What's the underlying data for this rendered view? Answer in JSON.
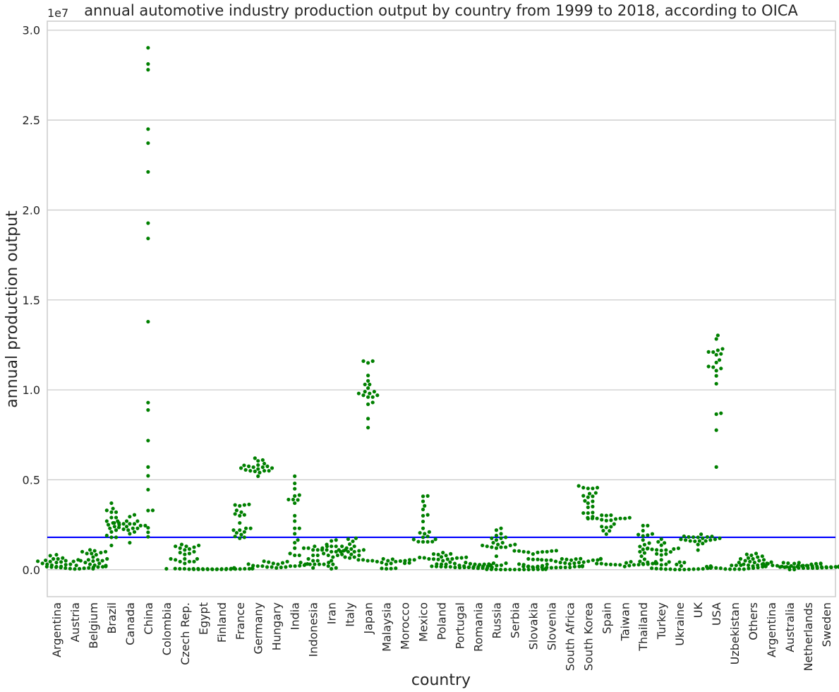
{
  "chart_data": {
    "type": "scatter",
    "style": "swarm",
    "title": "annual automotive industry production output by country from 1999 to 2018, according to OICA",
    "xlabel": "country",
    "ylabel": "annual production output",
    "y_multiplier_label": "1e7",
    "y_unit": 10000000,
    "ylim": [
      -1500000,
      30500000
    ],
    "yticks": [
      0,
      5000000,
      10000000,
      15000000,
      20000000,
      25000000,
      30000000
    ],
    "ytick_labels": [
      "0.0",
      "0.5",
      "1.0",
      "1.5",
      "2.0",
      "2.5",
      "3.0"
    ],
    "grid": true,
    "marker_color": "#008000",
    "reference_line": {
      "y": 1800000,
      "color": "#0000ff"
    },
    "categories": [
      "Argentina",
      "Austria",
      "Belgium",
      "Brazil",
      "Canada",
      "China",
      "Colombia",
      "Czech Rep.",
      "Egypt",
      "Finland",
      "France",
      "Germany",
      "Hungary",
      "India",
      "Indonesia",
      "Iran",
      "Italy",
      "Japan",
      "Malaysia",
      "Morocco",
      "Mexico",
      "Poland",
      "Portugal",
      "Romania",
      "Russia",
      "Serbia",
      "Slovakia",
      "Slovenia",
      "South Africa",
      "South Korea",
      "Spain",
      "Taiwan",
      "Thailand",
      "Turkey",
      "Ukraine",
      "UK",
      "USA",
      "Uzbekistan",
      "Others",
      "Argentina",
      "Australia",
      "Netherlands",
      "Sweden"
    ],
    "series": [
      {
        "values": [
          300000,
          450000,
          170000,
          430000,
          650000,
          830000,
          780000,
          600000,
          470000,
          550000,
          280000,
          180000,
          250000,
          300000,
          350000,
          400000,
          500000,
          600000,
          520000,
          460000
        ]
      },
      {
        "values": [
          150000,
          160000,
          170000,
          180000,
          200000,
          230000,
          240000,
          220000,
          210000,
          200000,
          150000,
          140000,
          130000,
          120000,
          100000,
          90000,
          80000,
          60000,
          50000,
          40000
        ]
      },
      {
        "values": [
          1000000,
          1050000,
          1000000,
          900000,
          950000,
          1100000,
          900000,
          830000,
          700000,
          550000,
          600000,
          500000,
          550000,
          500000,
          480000,
          400000,
          350000,
          300000,
          250000,
          50000
        ]
      },
      {
        "values": [
          1350000,
          1800000,
          1800000,
          1900000,
          2300000,
          2500000,
          2600000,
          2900000,
          3200000,
          3200000,
          3400000,
          3700000,
          3300000,
          2700000,
          2400000,
          2200000,
          2100000,
          2500000,
          2900000,
          2700000
        ]
      },
      {
        "values": [
          3050000,
          2950000,
          2600000,
          2550000,
          2700000,
          2600000,
          2700000,
          2550000,
          2550000,
          2400000,
          2300000,
          2100000,
          2350000,
          2450000,
          2450000,
          2300000,
          2250000,
          2200000,
          2000000,
          1500000
        ]
      },
      {
        "values": [
          1830000,
          2080000,
          2330000,
          3290000,
          3300000,
          4450000,
          5220000,
          5710000,
          7180000,
          8880000,
          9290000,
          13790000,
          18420000,
          19270000,
          22120000,
          23720000,
          24500000,
          27800000,
          28120000,
          29020000
        ]
      },
      {
        "values": [
          50000
        ]
      },
      {
        "values": [
          350000,
          450000,
          450000,
          450000,
          550000,
          600000,
          600000,
          600000,
          850000,
          900000,
          950000,
          1000000,
          1100000,
          1150000,
          1200000,
          1250000,
          1300000,
          1350000,
          1400000,
          1300000
        ]
      },
      {
        "values": [
          50000,
          50000,
          60000,
          70000,
          80000,
          90000,
          100000,
          90000,
          80000,
          70000,
          60000,
          50000,
          40000,
          30000,
          30000,
          20000,
          20000,
          20000,
          20000,
          20000
        ]
      },
      {
        "values": [
          40000,
          40000,
          40000,
          50000,
          50000,
          50000,
          60000,
          70000,
          80000,
          90000,
          80000,
          70000,
          60000,
          50000,
          40000,
          30000,
          30000,
          20000,
          20000,
          20000
        ]
      },
      {
        "values": [
          3600000,
          3630000,
          3600000,
          3550000,
          3300000,
          3200000,
          3000000,
          3100000,
          3050000,
          2600000,
          2300000,
          2200000,
          2200000,
          2100000,
          1950000,
          1850000,
          1800000,
          1750000,
          2050000,
          2300000
        ]
      },
      {
        "values": [
          5700000,
          5500000,
          5470000,
          5500000,
          5500000,
          5550000,
          5750000,
          5820000,
          6200000,
          6050000,
          6100000,
          5200000,
          5900000,
          5650000,
          5400000,
          5600000,
          5700000,
          5750000,
          5800000,
          5650000
        ]
      },
      {
        "values": [
          100000,
          150000,
          130000,
          150000,
          150000,
          200000,
          200000,
          250000,
          300000,
          350000,
          320000,
          200000,
          200000,
          220000,
          230000,
          310000,
          450000,
          470000,
          420000,
          380000
        ]
      },
      {
        "values": [
          800000,
          800000,
          900000,
          1200000,
          1500000,
          1650000,
          2000000,
          2300000,
          2300000,
          2700000,
          3000000,
          3700000,
          3900000,
          4100000,
          3900000,
          3880000,
          4150000,
          4500000,
          4800000,
          5200000
        ]
      },
      {
        "values": [
          300000,
          300000,
          100000,
          300000,
          300000,
          400000,
          500000,
          300000,
          400000,
          600000,
          500000,
          800000,
          800000,
          1100000,
          1200000,
          1200000,
          1100000,
          1200000,
          1300000,
          1300000
        ]
      },
      {
        "values": [
          50000,
          100000,
          200000,
          300000,
          500000,
          800000,
          900000,
          1100000,
          1000000,
          1300000,
          1400000,
          1600000,
          1000000,
          800000,
          700000,
          1100000,
          1300000,
          1000000,
          1100000,
          1650000
        ]
      },
      {
        "values": [
          1700000,
          1750000,
          1580000,
          1420000,
          1300000,
          1150000,
          1050000,
          1200000,
          1300000,
          1000000,
          850000,
          850000,
          800000,
          700000,
          650000,
          700000,
          1000000,
          1100000,
          1050000,
          1100000
        ]
      },
      {
        "values": [
          9900000,
          10100000,
          9800000,
          10300000,
          10300000,
          10500000,
          10800000,
          11500000,
          11600000,
          11600000,
          7900000,
          9600000,
          8400000,
          9900000,
          9600000,
          9800000,
          9300000,
          9200000,
          9700000,
          9700000
        ]
      },
      {
        "values": [
          300000,
          350000,
          400000,
          450000,
          500000,
          550000,
          550000,
          500000,
          450000,
          480000,
          500000,
          550000,
          600000,
          580000,
          550000,
          500000,
          50000,
          80000,
          70000,
          60000
        ]
      },
      {
        "values": [
          380000,
          360000
        ]
      },
      {
        "values": [
          1550000,
          1850000,
          1800000,
          1550000,
          1560000,
          1680000,
          1690000,
          2050000,
          2100000,
          2000000,
          1560000,
          2300000,
          2680000,
          3000000,
          3050000,
          3350000,
          3550000,
          3800000,
          4100000,
          4080000
        ]
      },
      {
        "values": [
          570000,
          500000,
          300000,
          300000,
          310000,
          600000,
          600000,
          710000,
          790000,
          950000,
          880000,
          870000,
          840000,
          650000,
          580000,
          590000,
          660000,
          680000,
          690000,
          660000
        ]
      },
      {
        "values": [
          250000,
          240000,
          230000,
          180000,
          240000,
          230000,
          220000,
          230000,
          180000,
          180000,
          130000,
          160000,
          190000,
          160000,
          160000,
          160000,
          140000,
          170000,
          130000,
          120000
        ]
      },
      {
        "values": [
          100000,
          80000,
          90000,
          100000,
          130000,
          130000,
          200000,
          230000,
          240000,
          250000,
          300000,
          300000,
          340000,
          330000,
          400000,
          420000,
          360000,
          360000,
          310000,
          280000
        ]
      },
      {
        "values": [
          1200000,
          1250000,
          1250000,
          1250000,
          1400000,
          1350000,
          1350000,
          1500000,
          1650000,
          1750000,
          1800000,
          1750000,
          1500000,
          2000000,
          2300000,
          2200000,
          1900000,
          1400000,
          1300000,
          750000
        ]
      },
      {
        "values": [
          10000,
          20000,
          10000,
          20000,
          10000,
          20000,
          20000,
          20000,
          20000,
          30000,
          40000,
          60000,
          30000,
          10000,
          30000,
          30000,
          30000,
          10000,
          10000,
          10000
        ]
      },
      {
        "values": [
          130000,
          180000,
          190000,
          280000,
          310000,
          220000,
          300000,
          570000,
          570000,
          990000,
          1040000,
          1040000,
          960000,
          970000,
          1000000,
          1000000,
          1050000,
          1060000,
          870000,
          600000
        ]
      },
      {
        "values": [
          120000,
          130000,
          120000,
          130000,
          150000,
          180000,
          180000,
          170000,
          200000,
          200000,
          190000,
          210000,
          180000,
          130000,
          110000,
          130000,
          130000,
          170000,
          200000,
          210000
        ]
      },
      {
        "values": [
          320000,
          360000,
          400000,
          400000,
          420000,
          460000,
          530000,
          590000,
          530000,
          530000,
          370000,
          470000,
          530000,
          540000,
          550000,
          570000,
          590000,
          610000,
          600000,
          610000
        ]
      },
      {
        "values": [
          2840000,
          2950000,
          3150000,
          3150000,
          3180000,
          3470000,
          3700000,
          3800000,
          4080000,
          3830000,
          3510000,
          4270000,
          4660000,
          4560000,
          4520000,
          4520000,
          4560000,
          4230000,
          4110000,
          4030000
        ]
      },
      {
        "values": [
          2850000,
          3030000,
          2850000,
          2850000,
          3030000,
          3010000,
          2750000,
          2780000,
          2890000,
          2540000,
          2170000,
          2390000,
          2350000,
          1980000,
          2160000,
          2400000,
          2730000,
          2890000,
          2850000,
          2820000
        ]
      },
      {
        "values": [
          350000,
          370000,
          270000,
          280000,
          390000,
          440000,
          440000,
          300000,
          280000,
          180000,
          230000,
          300000,
          340000,
          340000,
          340000,
          380000,
          350000,
          310000,
          290000,
          270000
        ]
      },
      {
        "values": [
          330000,
          410000,
          460000,
          580000,
          750000,
          930000,
          1130000,
          1190000,
          1290000,
          1390000,
          1000000,
          1650000,
          1480000,
          2450000,
          2450000,
          1880000,
          1920000,
          1950000,
          1990000,
          2170000
        ]
      },
      {
        "values": [
          300000,
          430000,
          270000,
          350000,
          550000,
          820000,
          880000,
          990000,
          1100000,
          1150000,
          870000,
          1090000,
          1190000,
          1070000,
          1130000,
          1170000,
          1360000,
          1490000,
          1700000,
          1550000
        ]
      },
      {
        "values": [
          20000,
          30000,
          40000,
          50000,
          100000,
          200000,
          210000,
          290000,
          400000,
          420000,
          60000,
          80000,
          100000,
          80000,
          50000,
          30000,
          30000,
          10000,
          10000,
          10000
        ]
      },
      {
        "values": [
          1970000,
          1810000,
          1690000,
          1820000,
          1850000,
          1860000,
          1800000,
          1650000,
          1750000,
          1650000,
          1090000,
          1400000,
          1460000,
          1580000,
          1600000,
          1600000,
          1690000,
          1820000,
          1750000,
          1600000
        ]
      },
      {
        "values": [
          13030000,
          12830000,
          11520000,
          12280000,
          12110000,
          12000000,
          11950000,
          11260000,
          10780000,
          8700000,
          5710000,
          7760000,
          8650000,
          10340000,
          11070000,
          11660000,
          12100000,
          12200000,
          11190000,
          11300000
        ]
      },
      {
        "values": [
          40000,
          30000,
          30000,
          30000,
          30000,
          70000,
          80000,
          100000,
          170000,
          200000,
          120000,
          160000,
          190000,
          240000,
          250000,
          240000,
          180000,
          90000,
          140000,
          220000
        ]
      },
      {
        "values": [
          200000,
          250000,
          300000,
          350000,
          400000,
          450000,
          500000,
          550000,
          600000,
          650000,
          700000,
          750000,
          800000,
          850000,
          900000,
          600000,
          500000,
          400000,
          300000,
          250000
        ]
      },
      {
        "values": [
          420000
        ]
      },
      {
        "values": [
          300000,
          330000,
          340000,
          350000,
          360000,
          390000,
          390000,
          330000,
          330000,
          330000,
          230000,
          240000,
          220000,
          210000,
          210000,
          180000,
          170000,
          160000,
          10000,
          10000
        ]
      },
      {
        "values": [
          100000,
          110000,
          120000,
          130000,
          150000,
          170000,
          180000,
          160000,
          150000,
          140000,
          120000,
          90000,
          90000,
          90000,
          90000,
          120000,
          150000,
          180000,
          180000,
          170000
        ]
      },
      {
        "values": [
          250000,
          230000,
          270000,
          280000,
          290000,
          330000,
          300000,
          290000,
          280000,
          250000,
          150000,
          220000,
          190000,
          160000,
          150000,
          150000,
          180000,
          200000,
          230000,
          220000
        ]
      }
    ]
  }
}
